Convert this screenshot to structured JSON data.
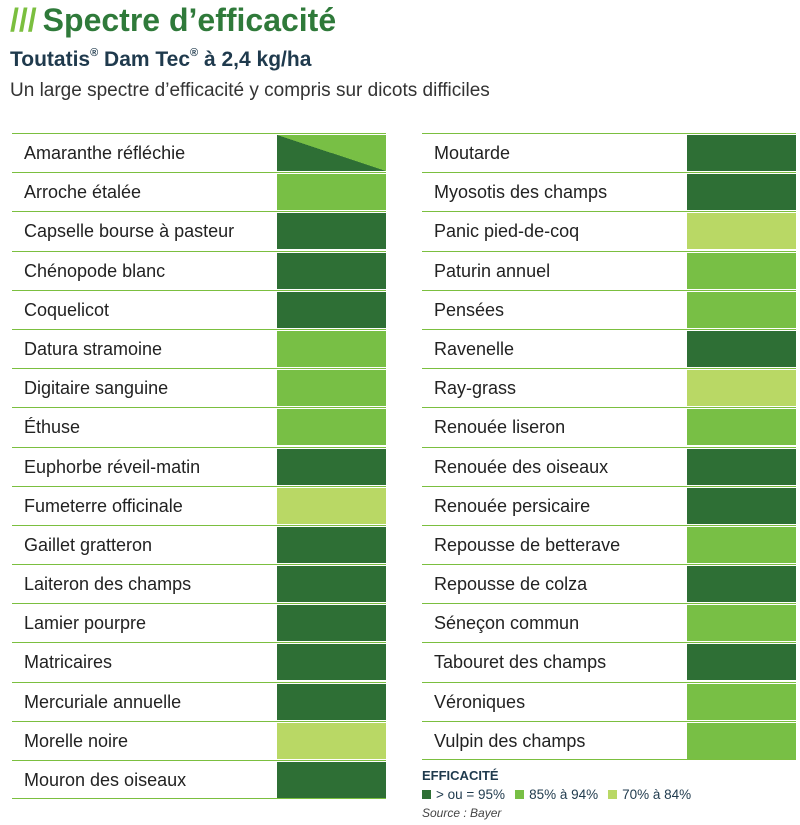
{
  "header": {
    "slashes": "///",
    "title": "Spectre d’efficacité",
    "product_name": "Toutatis",
    "product_reg1": "®",
    "product_mid": " Dam Tec",
    "product_reg2": "®",
    "product_dose": " à 2,4 kg/ha",
    "subtitle": "Un large spectre d’efficacité y compris sur dicots difficiles"
  },
  "colors": {
    "high": "#2e6f35",
    "medium": "#78bf45",
    "low": "#b9d865",
    "title_green": "#2f7a3a",
    "navy": "#1f3a4d"
  },
  "left_weeds": [
    {
      "name": "Amaranthe réfléchie",
      "efficacy": "split"
    },
    {
      "name": "Arroche étalée",
      "efficacy": "medium"
    },
    {
      "name": "Capselle bourse à pasteur",
      "efficacy": "high"
    },
    {
      "name": "Chénopode blanc",
      "efficacy": "high"
    },
    {
      "name": "Coquelicot",
      "efficacy": "high"
    },
    {
      "name": "Datura stramoine",
      "efficacy": "medium"
    },
    {
      "name": "Digitaire sanguine",
      "efficacy": "medium"
    },
    {
      "name": "Éthuse",
      "efficacy": "medium"
    },
    {
      "name": "Euphorbe réveil-matin",
      "efficacy": "high"
    },
    {
      "name": "Fumeterre officinale",
      "efficacy": "low"
    },
    {
      "name": "Gaillet gratteron",
      "efficacy": "high"
    },
    {
      "name": "Laiteron des champs",
      "efficacy": "high"
    },
    {
      "name": "Lamier pourpre",
      "efficacy": "high"
    },
    {
      "name": "Matricaires",
      "efficacy": "high"
    },
    {
      "name": "Mercuriale annuelle",
      "efficacy": "high"
    },
    {
      "name": "Morelle noire",
      "efficacy": "low"
    },
    {
      "name": "Mouron des oiseaux",
      "efficacy": "high"
    }
  ],
  "right_weeds": [
    {
      "name": "Moutarde",
      "efficacy": "high"
    },
    {
      "name": "Myosotis des champs",
      "efficacy": "high"
    },
    {
      "name": "Panic pied-de-coq",
      "efficacy": "low"
    },
    {
      "name": "Paturin annuel",
      "efficacy": "medium"
    },
    {
      "name": "Pensées",
      "efficacy": "medium"
    },
    {
      "name": "Ravenelle",
      "efficacy": "high"
    },
    {
      "name": "Ray-grass",
      "efficacy": "low"
    },
    {
      "name": "Renouée liseron",
      "efficacy": "medium"
    },
    {
      "name": "Renouée des oiseaux",
      "efficacy": "high"
    },
    {
      "name": "Renouée persicaire",
      "efficacy": "high"
    },
    {
      "name": "Repousse de betterave",
      "efficacy": "medium"
    },
    {
      "name": "Repousse de colza",
      "efficacy": "high"
    },
    {
      "name": "Séneçon commun",
      "efficacy": "medium"
    },
    {
      "name": "Tabouret des champs",
      "efficacy": "high"
    },
    {
      "name": "Véroniques",
      "efficacy": "medium"
    },
    {
      "name": "Vulpin des champs",
      "efficacy": "medium"
    }
  ],
  "legend": {
    "title": "EFFICACITÉ",
    "items": [
      {
        "label": "> ou = 95%",
        "level": "high"
      },
      {
        "label": "85% à 94%",
        "level": "medium"
      },
      {
        "label": "70% à 84%",
        "level": "low"
      }
    ],
    "source": "Source : Bayer"
  }
}
